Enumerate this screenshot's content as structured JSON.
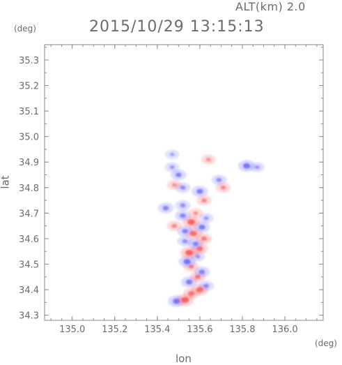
{
  "header": {
    "altitude_label": "ALT(km) 2.0",
    "timestamp": "2015/10/29 13:15:13"
  },
  "chart_data": {
    "type": "heatmap",
    "title": "2015/10/29 13:15:13",
    "xlabel": "lon",
    "ylabel": "lat",
    "x_unit": "(deg)",
    "y_unit": "(deg)",
    "xlim": [
      134.87,
      136.18
    ],
    "ylim": [
      34.28,
      35.36
    ],
    "xticks": [
      "135.0",
      "135.2",
      "135.4",
      "135.6",
      "135.8",
      "136.0"
    ],
    "yticks": [
      "34.3",
      "34.4",
      "34.5",
      "34.6",
      "34.7",
      "34.8",
      "34.9",
      "35.0",
      "35.1",
      "35.2",
      "35.3"
    ],
    "grid": false,
    "colors": {
      "positive": "#ff4d4d",
      "negative": "#5a5aff",
      "axis": "#8a8a8a"
    },
    "blobs": [
      {
        "lon": 135.49,
        "lat": 34.355,
        "v": -0.8
      },
      {
        "lon": 135.53,
        "lat": 34.36,
        "v": 0.9
      },
      {
        "lon": 135.56,
        "lat": 34.385,
        "v": 0.7
      },
      {
        "lon": 135.6,
        "lat": 34.4,
        "v": 0.8
      },
      {
        "lon": 135.63,
        "lat": 34.415,
        "v": -0.5
      },
      {
        "lon": 135.55,
        "lat": 34.43,
        "v": -0.7
      },
      {
        "lon": 135.59,
        "lat": 34.45,
        "v": 0.6
      },
      {
        "lon": 135.61,
        "lat": 34.47,
        "v": -0.6
      },
      {
        "lon": 135.56,
        "lat": 34.49,
        "v": 0.5
      },
      {
        "lon": 135.54,
        "lat": 34.51,
        "v": -0.8
      },
      {
        "lon": 135.59,
        "lat": 34.53,
        "v": -0.4
      },
      {
        "lon": 135.55,
        "lat": 34.545,
        "v": 0.9
      },
      {
        "lon": 135.6,
        "lat": 34.56,
        "v": 0.7
      },
      {
        "lon": 135.58,
        "lat": 34.58,
        "v": -0.6
      },
      {
        "lon": 135.53,
        "lat": 34.59,
        "v": -0.5
      },
      {
        "lon": 135.62,
        "lat": 34.6,
        "v": 0.6
      },
      {
        "lon": 135.57,
        "lat": 34.62,
        "v": 0.8
      },
      {
        "lon": 135.53,
        "lat": 34.63,
        "v": -0.6
      },
      {
        "lon": 135.61,
        "lat": 34.645,
        "v": -0.7
      },
      {
        "lon": 135.48,
        "lat": 34.65,
        "v": 0.5
      },
      {
        "lon": 135.56,
        "lat": 34.665,
        "v": 0.9
      },
      {
        "lon": 135.63,
        "lat": 34.68,
        "v": -0.4
      },
      {
        "lon": 135.52,
        "lat": 34.69,
        "v": -0.6
      },
      {
        "lon": 135.58,
        "lat": 34.7,
        "v": 0.4
      },
      {
        "lon": 135.44,
        "lat": 34.72,
        "v": -0.6
      },
      {
        "lon": 135.52,
        "lat": 34.73,
        "v": -0.5
      },
      {
        "lon": 135.62,
        "lat": 34.75,
        "v": 0.5
      },
      {
        "lon": 135.6,
        "lat": 34.785,
        "v": -0.7
      },
      {
        "lon": 135.52,
        "lat": 34.8,
        "v": -0.5
      },
      {
        "lon": 135.48,
        "lat": 34.81,
        "v": 0.4
      },
      {
        "lon": 135.69,
        "lat": 34.83,
        "v": -0.5
      },
      {
        "lon": 135.71,
        "lat": 34.8,
        "v": 0.5
      },
      {
        "lon": 135.5,
        "lat": 34.85,
        "v": -0.6
      },
      {
        "lon": 135.47,
        "lat": 34.88,
        "v": -0.4
      },
      {
        "lon": 135.82,
        "lat": 34.885,
        "v": -0.8
      },
      {
        "lon": 135.87,
        "lat": 34.88,
        "v": -0.4
      },
      {
        "lon": 135.64,
        "lat": 34.91,
        "v": 0.4
      },
      {
        "lon": 135.47,
        "lat": 34.93,
        "v": -0.3
      }
    ]
  }
}
